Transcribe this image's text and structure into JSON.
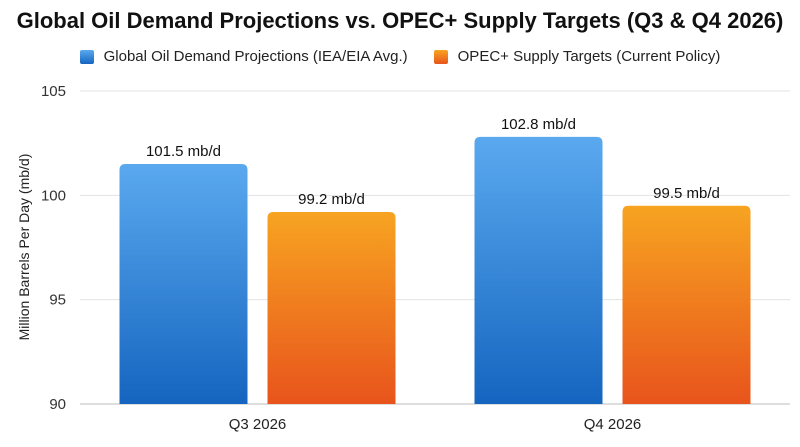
{
  "chart_data": {
    "type": "bar",
    "title": "Global Oil Demand Projections vs. OPEC+ Supply Targets (Q3 & Q4 2026)",
    "xlabel": "",
    "ylabel": "Million Barrels Per Day (mb/d)",
    "categories": [
      "Q3 2026",
      "Q4 2026"
    ],
    "ylim": [
      90,
      105
    ],
    "yticks": [
      90,
      95,
      100,
      105
    ],
    "grid": true,
    "legend_position": "top",
    "series": [
      {
        "name": "Global Oil Demand Projections (IEA/EIA Avg.)",
        "values": [
          101.5,
          102.8
        ],
        "labels": [
          "101.5 mb/d",
          "102.8 mb/d"
        ],
        "color_top": "#5aa9ef",
        "color_bottom": "#1565c0"
      },
      {
        "name": "OPEC+ Supply Targets (Current Policy)",
        "values": [
          99.2,
          99.5
        ],
        "labels": [
          "99.2 mb/d",
          "99.5 mb/d"
        ],
        "color_top": "#f7a421",
        "color_bottom": "#e8541c"
      }
    ]
  }
}
